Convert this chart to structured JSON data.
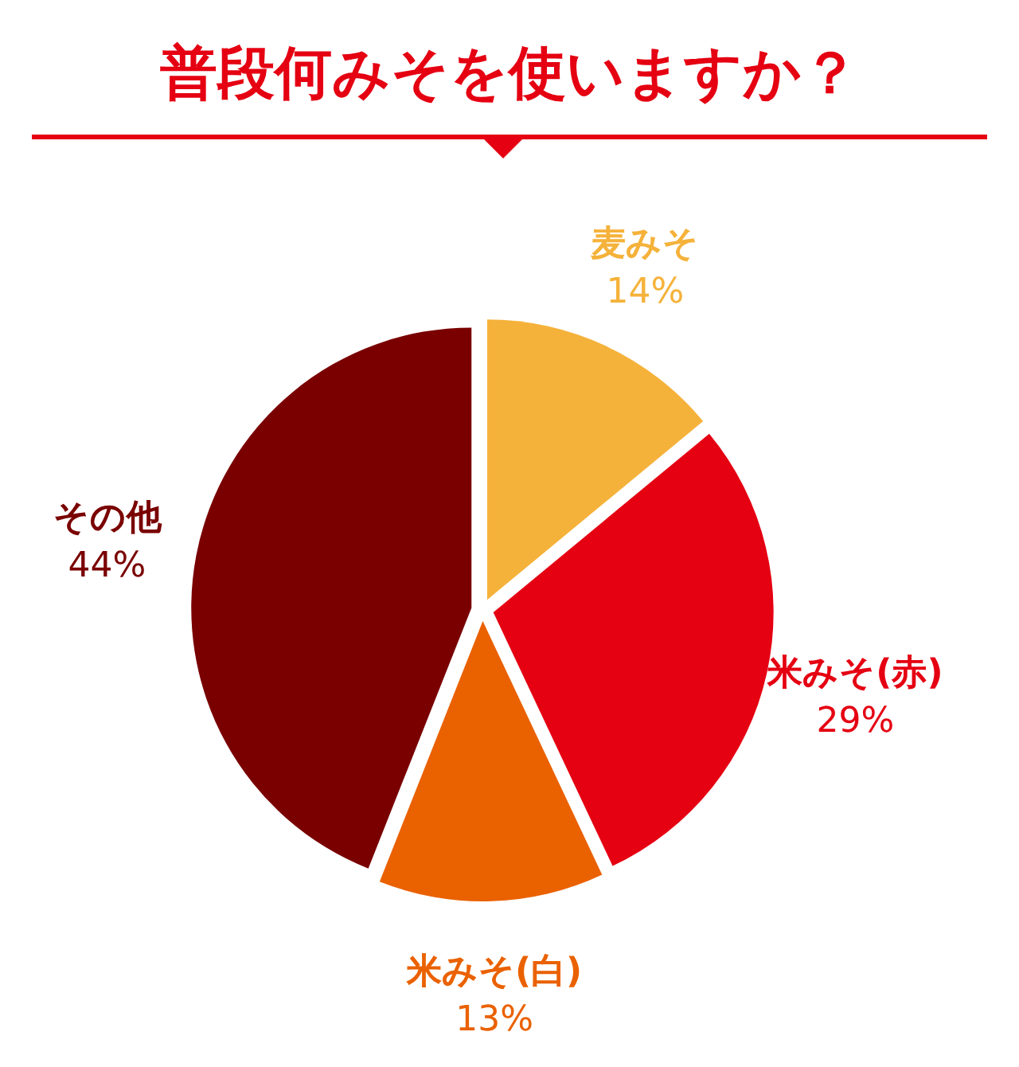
{
  "chart_data": {
    "type": "pie",
    "title": "普段何みそを使いますか？",
    "categories": [
      "麦みそ",
      "米みそ(赤)",
      "米みそ(白)",
      "その他"
    ],
    "values": [
      14,
      29,
      13,
      44
    ],
    "value_labels": [
      "14%",
      "29%",
      "13%",
      "44%"
    ],
    "colors": [
      "#f5b23a",
      "#e50012",
      "#ea6100",
      "#7a0000"
    ]
  }
}
